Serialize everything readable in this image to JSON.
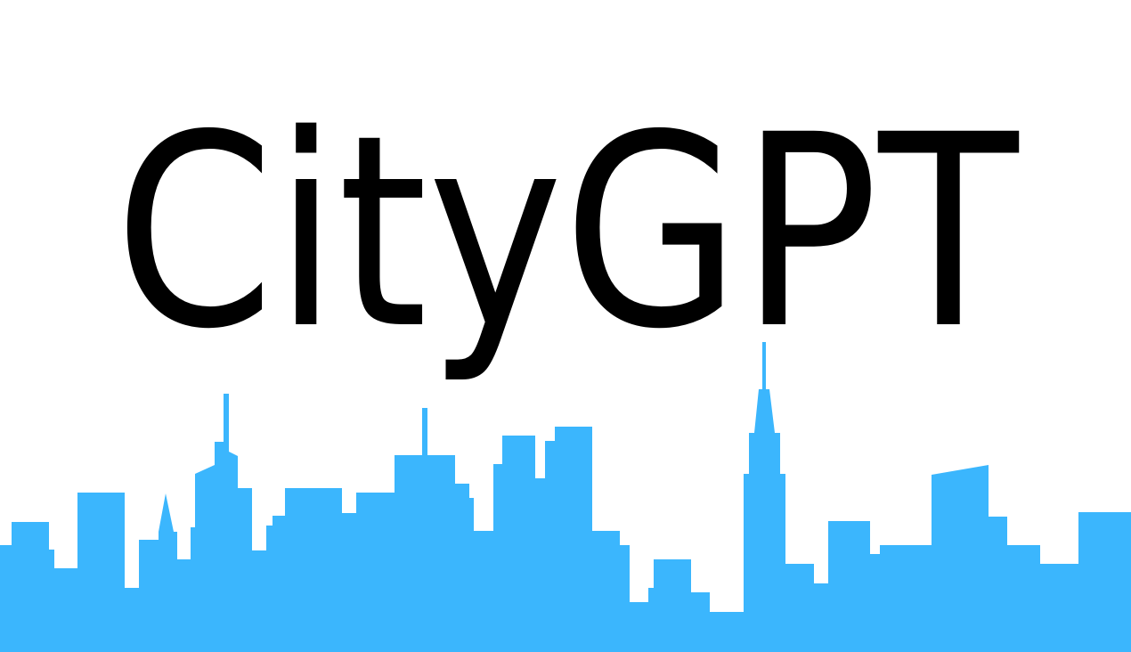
{
  "logo": {
    "wordmark": "CityGPT",
    "wordmark_color": "#000000",
    "skyline_color": "#3bb6fd",
    "background_color": "#ffffff"
  }
}
